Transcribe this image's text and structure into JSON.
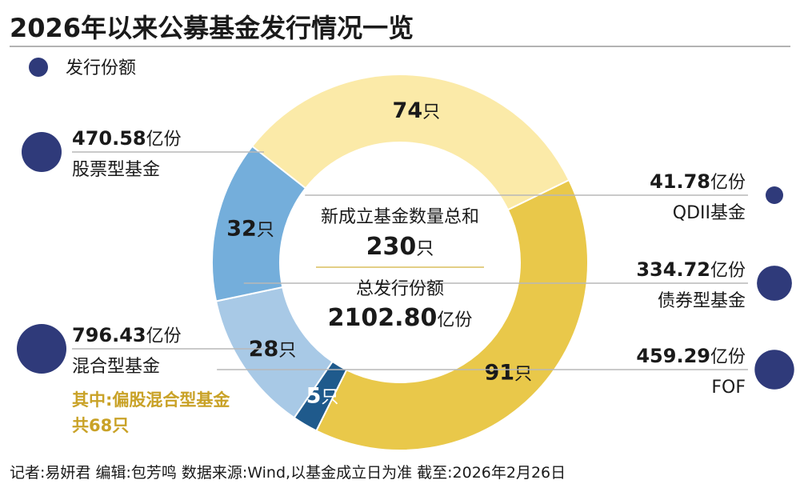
{
  "chart_data": {
    "type": "pie",
    "title": "2026年以来公募基金发行情况一览",
    "legend": "发行份额",
    "count_unit": "只",
    "amount_unit": "亿份",
    "center": {
      "count_label": "新成立基金数量总和",
      "count_value": "230",
      "amount_label": "总发行份额",
      "amount_value": "2102.80"
    },
    "series": [
      {
        "name": "股票型基金",
        "count": 91,
        "amount": "470.58",
        "color": "#e9c84a",
        "count_color": "#1a1a1a",
        "side": "left"
      },
      {
        "name": "QDII基金",
        "count": 5,
        "amount": "41.78",
        "color": "#1f5a8c",
        "count_color": "#ffffff",
        "side": "right"
      },
      {
        "name": "债券型基金",
        "count": 28,
        "amount": "334.72",
        "color": "#a8c9e6",
        "count_color": "#1a1a1a",
        "side": "right"
      },
      {
        "name": "FOF",
        "count": 32,
        "amount": "459.29",
        "color": "#74aedb",
        "count_color": "#1a1a1a",
        "side": "right"
      },
      {
        "name": "混合型基金",
        "count": 74,
        "amount": "796.43",
        "color": "#fbeaa8",
        "count_color": "#1a1a1a",
        "side": "left",
        "note": [
          "其中:偏股混合型基金",
          "共68只"
        ]
      }
    ],
    "marker_color": "#2f3a7a",
    "footer": "记者:易妍君  编辑:包芳鸣  数据来源:Wind,以基金成立日为准  截至:2026年2月26日"
  }
}
